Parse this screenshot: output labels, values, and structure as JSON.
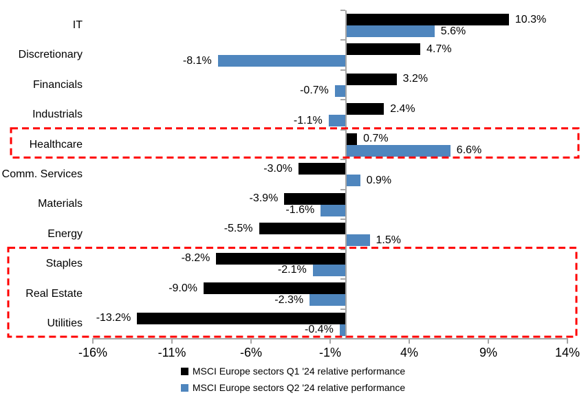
{
  "chart_data": {
    "type": "bar",
    "orientation": "horizontal",
    "title": "",
    "categories": [
      "IT",
      "Discretionary",
      "Financials",
      "Industrials",
      "Healthcare",
      "Comm. Services",
      "Materials",
      "Energy",
      "Staples",
      "Real Estate",
      "Utilities"
    ],
    "series": [
      {
        "name": "MSCI Europe sectors Q1 '24 relative performance",
        "color": "#000000",
        "values": [
          10.3,
          4.7,
          3.2,
          2.4,
          0.7,
          -3.0,
          -3.9,
          -5.5,
          -8.2,
          -9.0,
          -13.2
        ],
        "labels": [
          "10.3%",
          "4.7%",
          "3.2%",
          "2.4%",
          "0.7%",
          "-3.0%",
          "-3.9%",
          "-5.5%",
          "-8.2%",
          "-9.0%",
          "-13.2%"
        ]
      },
      {
        "name": "MSCI Europe sectors Q2 '24 relative performance",
        "color": "#4F86BE",
        "values": [
          5.6,
          -8.1,
          -0.7,
          -1.1,
          6.6,
          0.9,
          -1.6,
          1.5,
          -2.1,
          -2.3,
          -0.4
        ],
        "labels": [
          "5.6%",
          "-8.1%",
          "-0.7%",
          "-1.1%",
          "6.6%",
          "0.9%",
          "-1.6%",
          "1.5%",
          "-2.1%",
          "-2.3%",
          "-0.4%"
        ]
      }
    ],
    "xlim": [
      -16,
      14
    ],
    "x_ticks": [
      -16,
      -11,
      -6,
      -1,
      4,
      9,
      14
    ],
    "x_tick_labels": [
      "-16%",
      "-11%",
      "-6%",
      "-1%",
      "4%",
      "9%",
      "14%"
    ],
    "grid": false,
    "legend_position": "bottom",
    "axis_color": "#A6A6A6",
    "highlight_color": "#FF0000",
    "highlights": [
      {
        "categories": [
          "Healthcare"
        ]
      },
      {
        "categories": [
          "Staples",
          "Real Estate",
          "Utilities"
        ]
      }
    ]
  }
}
